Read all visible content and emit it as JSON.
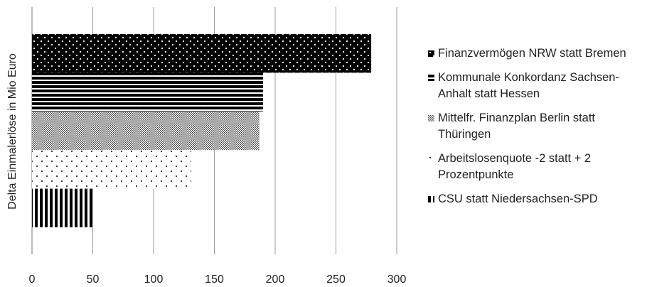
{
  "chart_data": {
    "type": "bar",
    "orientation": "horizontal",
    "y_axis_label": "Delta Einmalerlöse in Mio Euro",
    "categories": [
      null
    ],
    "series": [
      {
        "name": "Finanzvermögen NRW statt Bremen",
        "pattern": "dots-on-black",
        "values": [
          279
        ]
      },
      {
        "name": "Kommunale Konkordanz Sachsen-Anhalt statt Hessen",
        "pattern": "horizontal-stripes",
        "values": [
          190
        ]
      },
      {
        "name": "Mittelfr. Finanzplan Berlin statt Thüringen",
        "pattern": "checker",
        "values": [
          187
        ]
      },
      {
        "name": "Arbeitslosenquote -2 statt + 2 Prozentpunkte",
        "pattern": "dots",
        "values": [
          131
        ]
      },
      {
        "name": "CSU statt Niedersachsen-SPD",
        "pattern": "vertical-stripes",
        "values": [
          50
        ]
      }
    ],
    "xlim": [
      0,
      300
    ],
    "xticks": [
      0,
      50,
      100,
      150,
      200,
      250,
      300
    ],
    "grid": true,
    "legend": "right"
  }
}
